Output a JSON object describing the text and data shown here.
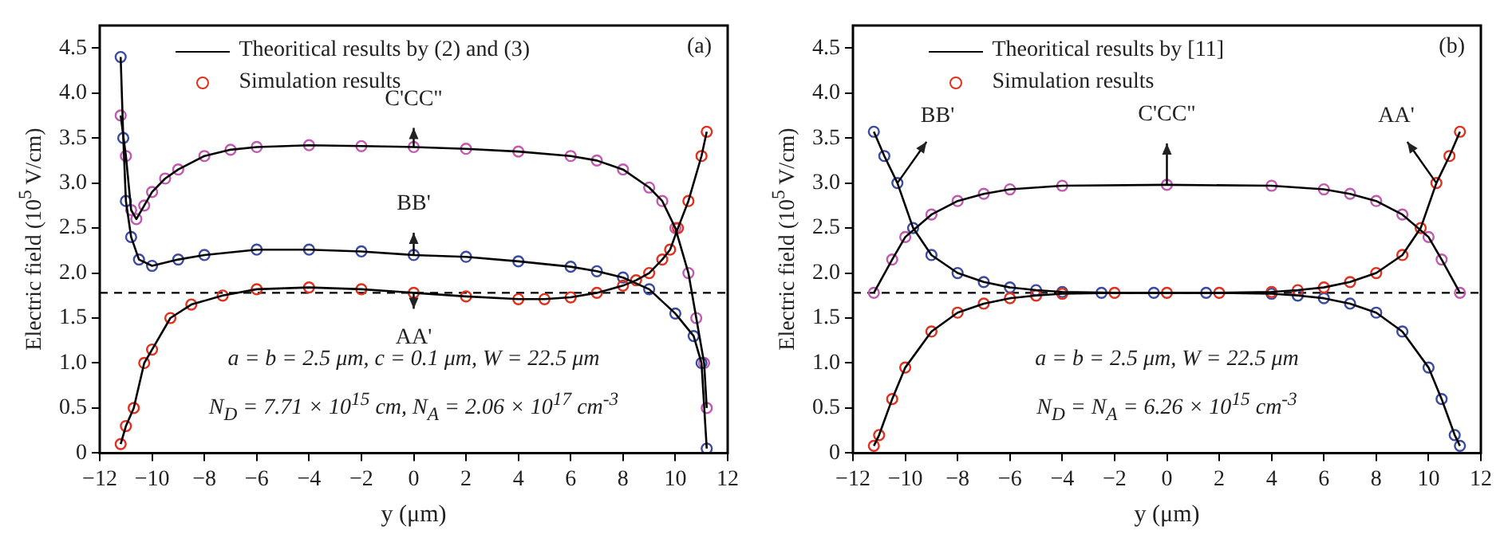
{
  "chart_data": [
    {
      "type": "line",
      "xlabel": "y (μm)",
      "ylabel": "Electric field (10$^{5}$ V/cm)",
      "legend": "top",
      "xlim": [
        -12,
        12
      ],
      "ylim": [
        0,
        4.75
      ],
      "xticks": [
        {
          "value": -12,
          "label": "−12"
        },
        {
          "value": -10,
          "label": "−10"
        },
        {
          "value": -8,
          "label": "−8"
        },
        {
          "value": -6,
          "label": "−6"
        },
        {
          "value": -4,
          "label": "−4"
        },
        {
          "value": -2,
          "label": "−2"
        },
        0,
        2,
        4,
        6,
        8,
        10,
        12
      ],
      "yticks": [
        0,
        0.5,
        {
          "value": 1,
          "label": "1.0"
        },
        1.5,
        {
          "value": 2,
          "label": "2.0"
        },
        2.5,
        {
          "value": 3,
          "label": "3.0"
        },
        3.5,
        {
          "value": 4,
          "label": "4.0"
        },
        4.5
      ],
      "ref_lines": [
        {
          "axis": "y",
          "value": 1.78,
          "color": "#000000",
          "line_style": "dashed"
        }
      ],
      "annotations": [
        "(a)",
        "a = b = 2.5 μm, c = 0.1 μm, W = 22.5 μm",
        "N$_{D}$ = 7.71 × 10$^{15}$ cm, N$_{A}$ = 2.06 × 10$^{17}$ cm$^{-3}$",
        {
          "text": "C'CC\"",
          "x": 0,
          "y": 3.4
        },
        {
          "text": "BB'",
          "x": 0,
          "y": 2.2
        },
        {
          "text": "AA'",
          "x": 0,
          "y": 1.78
        }
      ],
      "series": [
        {
          "name": "Theoritical results by (2) and (3)",
          "type": "line",
          "color": "#000000",
          "marker": "none",
          "x": [
            -11.2,
            -11,
            -10.7,
            -10.3,
            -10,
            -9.3,
            -8.5,
            -7.3,
            -6,
            -4,
            -2,
            0,
            2,
            4,
            5,
            6,
            7,
            8,
            8.5,
            9,
            9.5,
            9.8,
            10.1,
            10.5,
            11,
            11.2
          ],
          "values": [
            0.1,
            0.3,
            0.5,
            1.0,
            1.15,
            1.5,
            1.65,
            1.75,
            1.82,
            1.84,
            1.82,
            1.78,
            1.74,
            1.71,
            1.71,
            1.73,
            1.78,
            1.86,
            1.92,
            2.0,
            2.15,
            2.26,
            2.5,
            2.8,
            3.3,
            3.57
          ]
        },
        {
          "type": "line",
          "color": "#000000",
          "marker": "none",
          "x": [
            -11.2,
            -11.1,
            -11,
            -10.8,
            -10.5,
            -10,
            -9,
            -8,
            -6,
            -4,
            -2,
            0,
            2,
            4,
            6,
            7,
            8,
            9,
            10,
            10.7,
            11,
            11.2
          ],
          "values": [
            4.4,
            3.5,
            2.8,
            2.4,
            2.15,
            2.08,
            2.15,
            2.2,
            2.26,
            2.26,
            2.24,
            2.2,
            2.18,
            2.13,
            2.07,
            2.02,
            1.95,
            1.82,
            1.55,
            1.3,
            1.0,
            0.05
          ]
        },
        {
          "type": "line",
          "color": "#000000",
          "marker": "none",
          "x": [
            -11.2,
            -11,
            -10.8,
            -10.6,
            -10.3,
            -10,
            -9.5,
            -9,
            -8,
            -7,
            -6,
            -4,
            -2,
            0,
            2,
            4,
            6,
            7,
            8,
            9,
            9.5,
            10,
            10.5,
            10.8,
            11.1,
            11.2
          ],
          "values": [
            3.75,
            3.3,
            2.7,
            2.6,
            2.75,
            2.9,
            3.05,
            3.15,
            3.3,
            3.37,
            3.4,
            3.42,
            3.41,
            3.4,
            3.38,
            3.35,
            3.3,
            3.25,
            3.15,
            2.95,
            2.8,
            2.5,
            2.0,
            1.5,
            1.0,
            0.5
          ]
        },
        {
          "name": "Simulation results",
          "type": "scatter",
          "color": "#e0301e",
          "marker": "circle",
          "x": [
            -11.2,
            -11,
            -10.7,
            -10.3,
            -10,
            -9.3,
            -8.5,
            -7.3,
            -6,
            -4,
            -2,
            0,
            2,
            4,
            5,
            6,
            7,
            8,
            8.5,
            9,
            9.5,
            9.8,
            10.1,
            10.5,
            11,
            11.2
          ],
          "values": [
            0.1,
            0.3,
            0.5,
            1.0,
            1.15,
            1.5,
            1.65,
            1.75,
            1.82,
            1.84,
            1.82,
            1.78,
            1.74,
            1.71,
            1.71,
            1.73,
            1.78,
            1.86,
            1.92,
            2.0,
            2.15,
            2.26,
            2.5,
            2.8,
            3.3,
            3.57
          ]
        },
        {
          "type": "scatter",
          "color": "#3a4ba0",
          "marker": "circle",
          "x": [
            -11.2,
            -11.1,
            -11,
            -10.8,
            -10.5,
            -10,
            -9,
            -8,
            -6,
            -4,
            -2,
            0,
            2,
            4,
            6,
            7,
            8,
            9,
            10,
            10.7,
            11,
            11.2
          ],
          "values": [
            4.4,
            3.5,
            2.8,
            2.4,
            2.15,
            2.08,
            2.15,
            2.2,
            2.26,
            2.26,
            2.24,
            2.2,
            2.18,
            2.13,
            2.07,
            2.02,
            1.95,
            1.82,
            1.55,
            1.3,
            1.0,
            0.05
          ]
        },
        {
          "type": "scatter",
          "color": "#c05ab0",
          "marker": "circle",
          "x": [
            -11.2,
            -11,
            -10.8,
            -10.6,
            -10.3,
            -10,
            -9.5,
            -9,
            -8,
            -7,
            -6,
            -4,
            -2,
            0,
            2,
            4,
            6,
            7,
            8,
            9,
            9.5,
            10,
            10.5,
            10.8,
            11.1,
            11.2
          ],
          "values": [
            3.75,
            3.3,
            2.7,
            2.6,
            2.75,
            2.9,
            3.05,
            3.15,
            3.3,
            3.37,
            3.4,
            3.42,
            3.41,
            3.4,
            3.38,
            3.35,
            3.3,
            3.25,
            3.15,
            2.95,
            2.8,
            2.5,
            2.0,
            1.5,
            1.0,
            0.5
          ]
        }
      ]
    },
    {
      "type": "line",
      "xlabel": "y (μm)",
      "ylabel": "Electric field (10$^{5}$ V/cm)",
      "legend": "top",
      "xlim": [
        -12,
        12
      ],
      "ylim": [
        0,
        4.75
      ],
      "xticks": [
        {
          "value": -12,
          "label": "−12"
        },
        {
          "value": -10,
          "label": "−10"
        },
        {
          "value": -8,
          "label": "−8"
        },
        {
          "value": -6,
          "label": "−6"
        },
        {
          "value": -4,
          "label": "−4"
        },
        {
          "value": -2,
          "label": "−2"
        },
        0,
        2,
        4,
        6,
        8,
        10,
        12
      ],
      "yticks": [
        0,
        0.5,
        {
          "value": 1,
          "label": "1.0"
        },
        1.5,
        {
          "value": 2,
          "label": "2.0"
        },
        2.5,
        {
          "value": 3,
          "label": "3.0"
        },
        3.5,
        {
          "value": 4,
          "label": "4.0"
        },
        4.5
      ],
      "ref_lines": [
        {
          "axis": "y",
          "value": 1.78,
          "color": "#000000",
          "line_style": "dashed"
        }
      ],
      "annotations": [
        "(b)",
        "a = b = 2.5 μm, W = 22.5 μm",
        "N$_{D}$ = N$_{A}$ = 6.26 × 10$^{15}$ cm$^{-3}$",
        {
          "text": "BB'",
          "x": -10.3,
          "y": 3.0
        },
        {
          "text": "C'CC\"",
          "x": 0,
          "y": 2.98
        },
        {
          "text": "AA'",
          "x": 10.3,
          "y": 3.0
        }
      ],
      "series": [
        {
          "name": "Theoritical results by [11]",
          "type": "line",
          "color": "#000000",
          "marker": "none",
          "x": [
            -11.2,
            -11,
            -10.5,
            -10,
            -9,
            -8,
            -7,
            -6,
            -5,
            -4,
            -2,
            0,
            2,
            4,
            5,
            6,
            7,
            8,
            9,
            9.7,
            10.3,
            10.8,
            11.2
          ],
          "values": [
            0.08,
            0.2,
            0.6,
            0.95,
            1.35,
            1.56,
            1.66,
            1.72,
            1.75,
            1.77,
            1.78,
            1.78,
            1.78,
            1.79,
            1.81,
            1.84,
            1.9,
            2.0,
            2.2,
            2.5,
            3.0,
            3.3,
            3.57
          ]
        },
        {
          "type": "line",
          "color": "#000000",
          "marker": "none",
          "x": [
            -11.2,
            -10.8,
            -10.3,
            -9.7,
            -9,
            -8,
            -7,
            -6,
            -5,
            -4,
            -2,
            0,
            2,
            4,
            5,
            6,
            7,
            8,
            9,
            10,
            10.5,
            11,
            11.2
          ],
          "values": [
            3.57,
            3.3,
            3.0,
            2.5,
            2.2,
            2.0,
            1.9,
            1.84,
            1.81,
            1.79,
            1.78,
            1.78,
            1.78,
            1.77,
            1.75,
            1.72,
            1.66,
            1.56,
            1.35,
            0.95,
            0.6,
            0.2,
            0.08
          ]
        },
        {
          "type": "line",
          "color": "#000000",
          "marker": "none",
          "x": [
            -11.2,
            -10.5,
            -10,
            -9,
            -8,
            -7,
            -6,
            -4,
            0,
            4,
            6,
            7,
            8,
            9,
            10,
            10.5,
            11.2
          ],
          "values": [
            1.78,
            2.15,
            2.4,
            2.65,
            2.8,
            2.88,
            2.93,
            2.97,
            2.98,
            2.97,
            2.93,
            2.88,
            2.8,
            2.65,
            2.4,
            2.15,
            1.78
          ]
        },
        {
          "name": "Simulation results",
          "type": "scatter",
          "color": "#e0301e",
          "marker": "circle",
          "x": [
            -11.2,
            -11,
            -10.5,
            -10,
            -9,
            -8,
            -7,
            -6,
            -5,
            -4,
            -2,
            0,
            2,
            4,
            5,
            6,
            7,
            8,
            9,
            9.7,
            10.3,
            10.8,
            11.2
          ],
          "values": [
            0.08,
            0.2,
            0.6,
            0.95,
            1.35,
            1.56,
            1.66,
            1.72,
            1.75,
            1.77,
            1.78,
            1.78,
            1.78,
            1.79,
            1.81,
            1.84,
            1.9,
            2.0,
            2.2,
            2.5,
            3.0,
            3.3,
            3.57
          ]
        },
        {
          "type": "scatter",
          "color": "#3a4ba0",
          "marker": "circle",
          "x": [
            -11.2,
            -10.8,
            -10.3,
            -9.7,
            -9,
            -8,
            -7,
            -6,
            -5,
            -4,
            -2.5,
            -0.5,
            1.5,
            4,
            5,
            6,
            7,
            8,
            9,
            10,
            10.5,
            11,
            11.2
          ],
          "values": [
            3.57,
            3.3,
            3.0,
            2.5,
            2.2,
            2.0,
            1.9,
            1.84,
            1.81,
            1.79,
            1.78,
            1.78,
            1.78,
            1.77,
            1.75,
            1.72,
            1.66,
            1.56,
            1.35,
            0.95,
            0.6,
            0.2,
            0.08
          ]
        },
        {
          "type": "scatter",
          "color": "#c05ab0",
          "marker": "circle",
          "x": [
            -11.2,
            -10.5,
            -10,
            -9,
            -8,
            -7,
            -6,
            -4,
            0,
            4,
            6,
            7,
            8,
            9,
            10,
            10.5,
            11.2
          ],
          "values": [
            1.78,
            2.15,
            2.4,
            2.65,
            2.8,
            2.88,
            2.93,
            2.97,
            2.98,
            2.97,
            2.93,
            2.88,
            2.8,
            2.65,
            2.4,
            2.15,
            1.78
          ]
        }
      ]
    }
  ]
}
